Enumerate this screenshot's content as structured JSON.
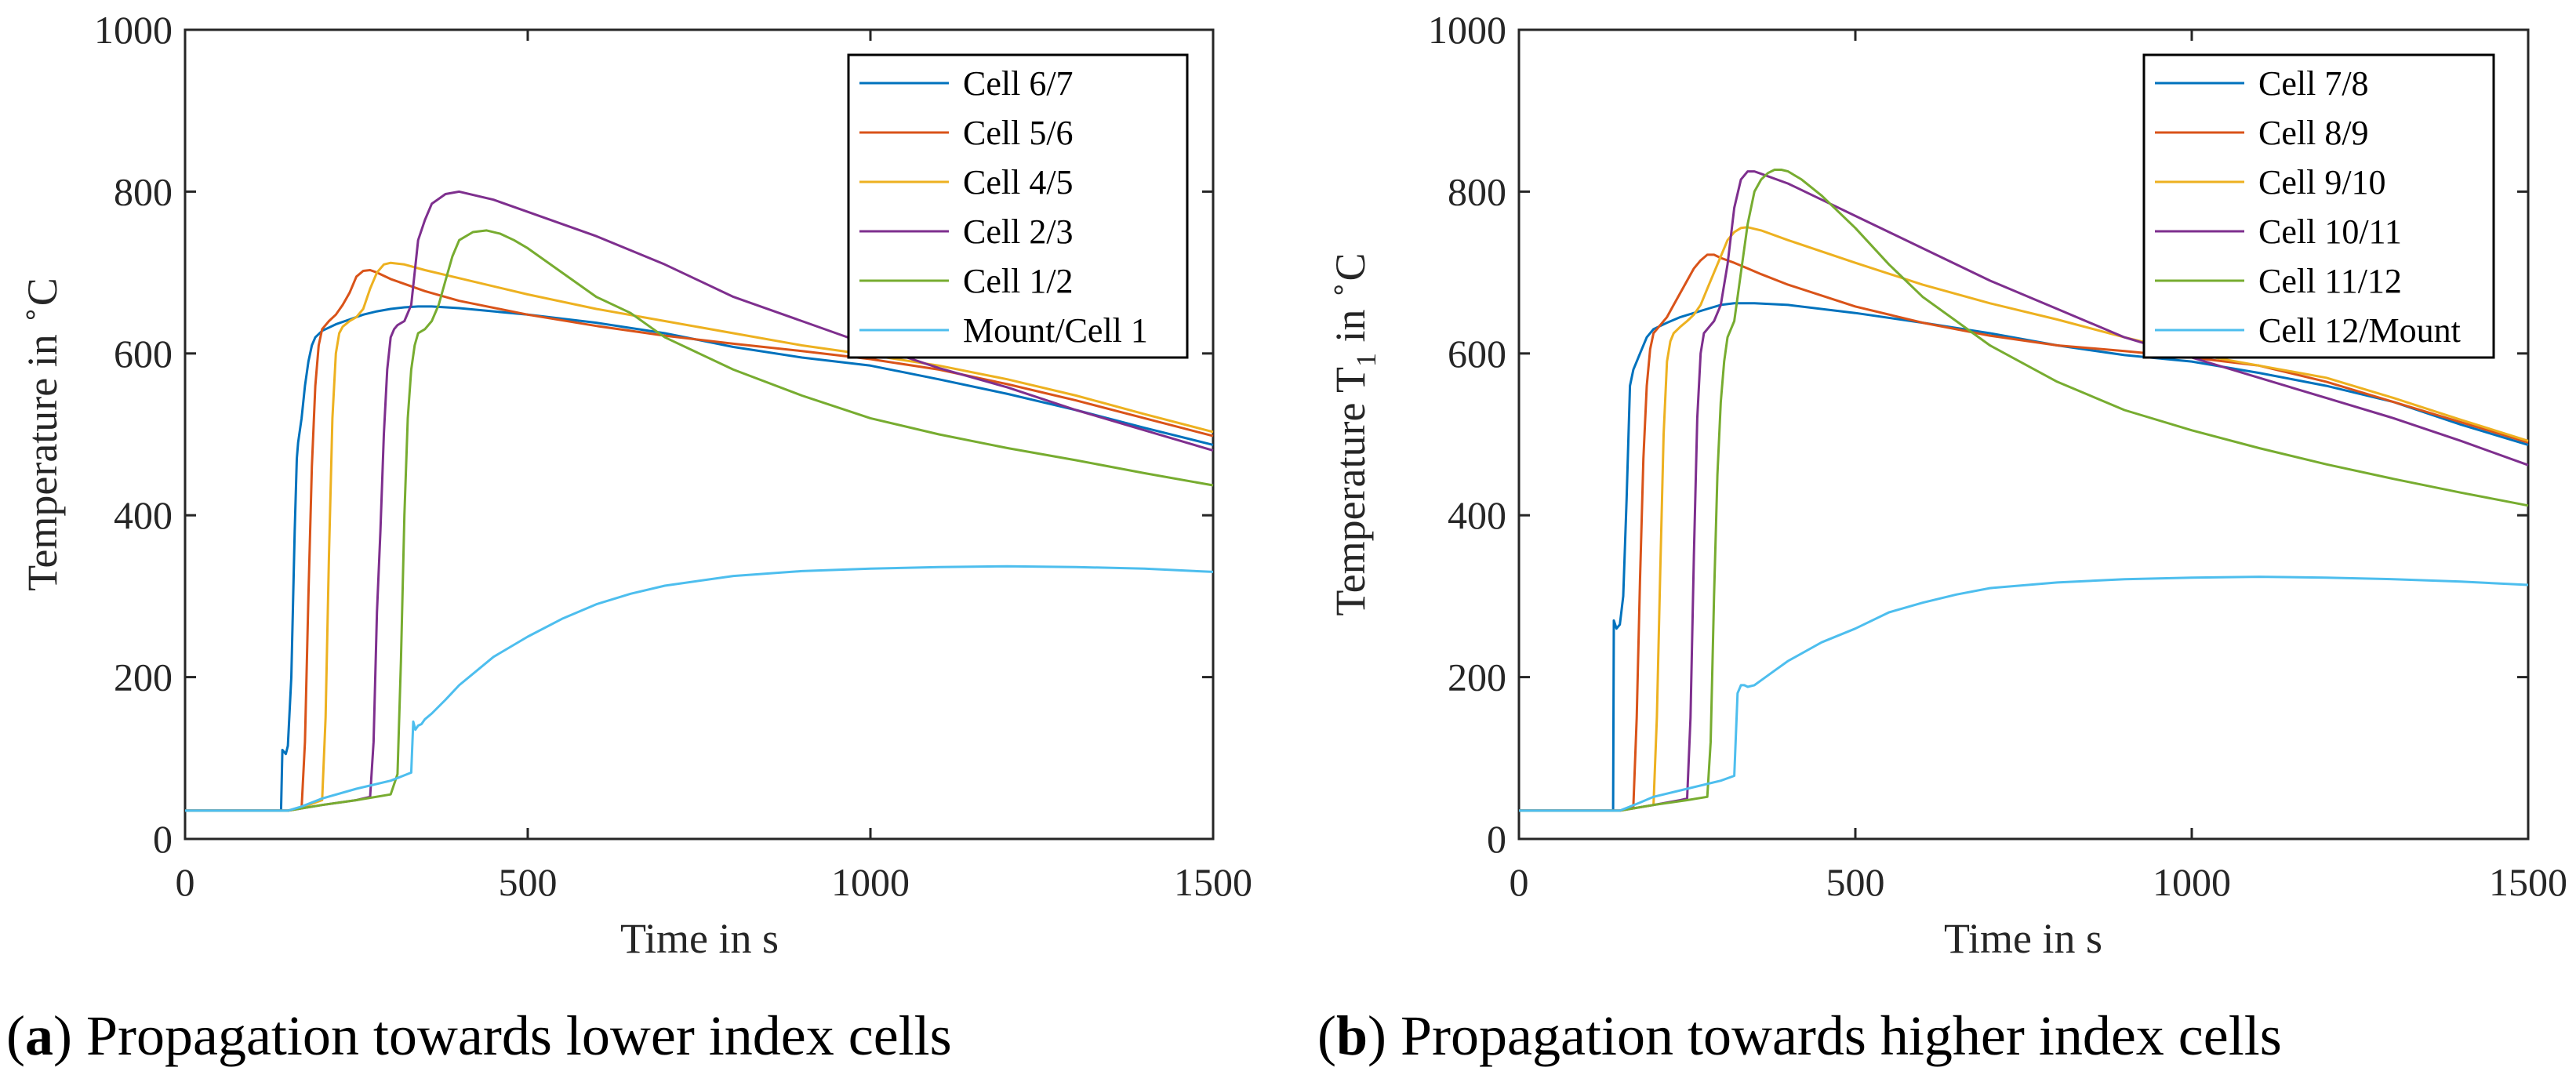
{
  "chart_data": [
    {
      "type": "line",
      "panel": "a",
      "title": "",
      "xlabel": "Time in s",
      "ylabel": "Temperature in °C",
      "ylabel_parts": {
        "prefix": "Temperature in ",
        "sup": "∘",
        "unit": "C"
      },
      "xlim": [
        0,
        1500
      ],
      "ylim": [
        0,
        1000
      ],
      "xticks": [
        0,
        500,
        1000,
        1500
      ],
      "yticks": [
        0,
        200,
        400,
        600,
        800,
        1000
      ],
      "legend_position": "top-right",
      "caption": {
        "letter": "a",
        "text": "Propagation towards lower index cells"
      },
      "series": [
        {
          "name": "Cell 6/7",
          "color": "#0072BD",
          "x": [
            0,
            140,
            142,
            147,
            150,
            155,
            160,
            163,
            165,
            170,
            175,
            180,
            185,
            190,
            200,
            210,
            220,
            240,
            260,
            280,
            300,
            320,
            340,
            360,
            400,
            500,
            600,
            700,
            800,
            900,
            1000,
            1100,
            1200,
            1300,
            1400,
            1500
          ],
          "y": [
            35,
            35,
            110,
            105,
            115,
            200,
            380,
            470,
            490,
            520,
            560,
            590,
            610,
            620,
            628,
            632,
            636,
            642,
            648,
            652,
            655,
            657,
            658,
            658,
            656,
            648,
            638,
            625,
            608,
            595,
            585,
            568,
            550,
            530,
            508,
            487
          ]
        },
        {
          "name": "Cell 5/6",
          "color": "#D95319",
          "x": [
            0,
            150,
            170,
            175,
            180,
            185,
            190,
            195,
            200,
            210,
            220,
            230,
            240,
            250,
            260,
            270,
            280,
            300,
            350,
            400,
            500,
            600,
            700,
            800,
            900,
            1000,
            1100,
            1200,
            1300,
            1400,
            1500
          ],
          "y": [
            35,
            35,
            38,
            120,
            300,
            460,
            560,
            610,
            630,
            640,
            648,
            660,
            675,
            695,
            702,
            703,
            700,
            692,
            677,
            665,
            648,
            634,
            622,
            612,
            603,
            593,
            580,
            562,
            542,
            520,
            498
          ]
        },
        {
          "name": "Cell 4/5",
          "color": "#EDB120",
          "x": [
            0,
            150,
            180,
            200,
            205,
            210,
            215,
            220,
            225,
            230,
            240,
            250,
            260,
            270,
            280,
            290,
            300,
            320,
            350,
            400,
            500,
            600,
            700,
            800,
            900,
            1000,
            1100,
            1200,
            1300,
            1400,
            1500
          ],
          "y": [
            35,
            35,
            42,
            48,
            150,
            350,
            520,
            600,
            625,
            633,
            640,
            645,
            655,
            680,
            700,
            710,
            712,
            710,
            703,
            693,
            673,
            655,
            640,
            625,
            610,
            598,
            585,
            568,
            548,
            525,
            503
          ]
        },
        {
          "name": "Cell 2/3",
          "color": "#7E2F8E",
          "x": [
            0,
            150,
            200,
            250,
            270,
            275,
            280,
            285,
            290,
            295,
            300,
            305,
            310,
            320,
            330,
            340,
            350,
            360,
            380,
            400,
            450,
            500,
            600,
            700,
            800,
            900,
            1000,
            1100,
            1200,
            1300,
            1400,
            1500
          ],
          "y": [
            35,
            35,
            42,
            48,
            52,
            120,
            280,
            380,
            500,
            580,
            620,
            630,
            635,
            640,
            660,
            740,
            765,
            785,
            797,
            800,
            790,
            775,
            745,
            710,
            670,
            640,
            610,
            582,
            558,
            530,
            505,
            480
          ]
        },
        {
          "name": "Cell 1/2",
          "color": "#77AC30",
          "x": [
            0,
            150,
            200,
            250,
            300,
            310,
            315,
            320,
            325,
            330,
            335,
            340,
            350,
            360,
            370,
            380,
            390,
            400,
            420,
            440,
            460,
            480,
            500,
            550,
            600,
            650,
            700,
            800,
            900,
            1000,
            1100,
            1200,
            1300,
            1400,
            1500
          ],
          "y": [
            35,
            35,
            42,
            48,
            55,
            80,
            220,
            400,
            520,
            580,
            610,
            625,
            630,
            640,
            660,
            690,
            720,
            740,
            750,
            752,
            748,
            740,
            730,
            700,
            670,
            650,
            620,
            580,
            548,
            520,
            500,
            483,
            468,
            452,
            437
          ]
        },
        {
          "name": "Mount/Cell 1",
          "color": "#4DBEEE",
          "x": [
            0,
            150,
            170,
            200,
            250,
            300,
            330,
            333,
            336,
            340,
            345,
            350,
            360,
            380,
            400,
            450,
            500,
            550,
            600,
            650,
            700,
            800,
            900,
            1000,
            1100,
            1200,
            1300,
            1400,
            1500
          ],
          "y": [
            35,
            35,
            40,
            50,
            62,
            72,
            82,
            145,
            135,
            140,
            142,
            148,
            155,
            172,
            190,
            225,
            250,
            272,
            290,
            303,
            313,
            325,
            331,
            334,
            336,
            337,
            336,
            334,
            330
          ]
        }
      ]
    },
    {
      "type": "line",
      "panel": "b",
      "title": "",
      "xlabel": "Time in s",
      "ylabel": "Temperature T1 in °C",
      "ylabel_parts": {
        "prefix": "Temperature T",
        "sub": "1",
        "mid": " in ",
        "sup": "∘",
        "unit": "C"
      },
      "xlim": [
        0,
        1500
      ],
      "ylim": [
        0,
        1000
      ],
      "xticks": [
        0,
        500,
        1000,
        1500
      ],
      "yticks": [
        0,
        200,
        400,
        600,
        800,
        1000
      ],
      "legend_position": "top-right",
      "caption": {
        "letter": "b",
        "text": "Propagation towards higher index cells"
      },
      "series": [
        {
          "name": "Cell 7/8",
          "color": "#0072BD",
          "x": [
            0,
            140,
            141,
            145,
            150,
            155,
            160,
            165,
            170,
            175,
            180,
            190,
            200,
            220,
            240,
            260,
            280,
            300,
            320,
            350,
            400,
            500,
            600,
            700,
            800,
            900,
            1000,
            1100,
            1200,
            1300,
            1400,
            1500
          ],
          "y": [
            35,
            35,
            270,
            260,
            265,
            300,
            420,
            560,
            580,
            590,
            600,
            620,
            630,
            638,
            645,
            650,
            655,
            660,
            662,
            662,
            660,
            650,
            638,
            625,
            610,
            598,
            590,
            576,
            560,
            540,
            512,
            487
          ]
        },
        {
          "name": "Cell 8/9",
          "color": "#D95319",
          "x": [
            0,
            150,
            170,
            175,
            180,
            185,
            190,
            195,
            200,
            210,
            220,
            230,
            240,
            250,
            260,
            270,
            280,
            290,
            300,
            320,
            340,
            360,
            400,
            500,
            600,
            700,
            800,
            900,
            1000,
            1100,
            1200,
            1300,
            1400,
            1500
          ],
          "y": [
            35,
            35,
            40,
            150,
            320,
            470,
            560,
            605,
            625,
            635,
            645,
            660,
            675,
            690,
            705,
            715,
            722,
            722,
            718,
            712,
            705,
            698,
            685,
            658,
            638,
            622,
            610,
            603,
            595,
            585,
            565,
            540,
            515,
            490
          ]
        },
        {
          "name": "Cell 9/10",
          "color": "#EDB120",
          "x": [
            0,
            150,
            200,
            205,
            210,
            215,
            220,
            225,
            230,
            240,
            250,
            260,
            270,
            280,
            290,
            300,
            310,
            320,
            330,
            340,
            360,
            400,
            500,
            600,
            700,
            800,
            900,
            1000,
            1100,
            1200,
            1300,
            1400,
            1500
          ],
          "y": [
            35,
            35,
            42,
            150,
            330,
            500,
            590,
            615,
            625,
            633,
            640,
            648,
            660,
            680,
            700,
            720,
            740,
            750,
            755,
            756,
            752,
            740,
            712,
            685,
            662,
            642,
            620,
            600,
            585,
            570,
            545,
            518,
            492
          ]
        },
        {
          "name": "Cell 10/11",
          "color": "#7E2F8E",
          "x": [
            0,
            150,
            200,
            240,
            250,
            255,
            260,
            265,
            270,
            275,
            280,
            290,
            300,
            310,
            320,
            330,
            340,
            350,
            360,
            400,
            450,
            500,
            600,
            700,
            800,
            900,
            1000,
            1100,
            1200,
            1300,
            1400,
            1500
          ],
          "y": [
            35,
            35,
            42,
            48,
            50,
            150,
            350,
            520,
            600,
            625,
            630,
            640,
            660,
            710,
            780,
            815,
            825,
            825,
            822,
            810,
            790,
            770,
            730,
            690,
            655,
            620,
            595,
            570,
            545,
            520,
            492,
            462
          ]
        },
        {
          "name": "Cell 11/12",
          "color": "#77AC30",
          "x": [
            0,
            150,
            200,
            250,
            280,
            285,
            290,
            295,
            300,
            305,
            310,
            320,
            330,
            340,
            350,
            360,
            370,
            380,
            390,
            400,
            420,
            450,
            500,
            550,
            600,
            650,
            700,
            800,
            900,
            1000,
            1100,
            1200,
            1300,
            1400,
            1500
          ],
          "y": [
            35,
            35,
            42,
            48,
            52,
            120,
            300,
            450,
            540,
            590,
            620,
            640,
            700,
            760,
            800,
            815,
            823,
            827,
            827,
            825,
            815,
            795,
            755,
            710,
            670,
            640,
            610,
            565,
            530,
            505,
            483,
            463,
            445,
            428,
            412
          ]
        },
        {
          "name": "Cell 12/Mount",
          "color": "#4DBEEE",
          "x": [
            0,
            150,
            180,
            200,
            250,
            300,
            320,
            325,
            330,
            335,
            340,
            350,
            360,
            380,
            400,
            450,
            500,
            550,
            600,
            650,
            700,
            800,
            900,
            1000,
            1100,
            1200,
            1300,
            1400,
            1500
          ],
          "y": [
            35,
            35,
            45,
            52,
            62,
            72,
            78,
            180,
            190,
            190,
            188,
            190,
            196,
            208,
            220,
            243,
            260,
            280,
            292,
            302,
            310,
            317,
            321,
            323,
            324,
            323,
            321,
            318,
            314
          ]
        }
      ]
    }
  ]
}
